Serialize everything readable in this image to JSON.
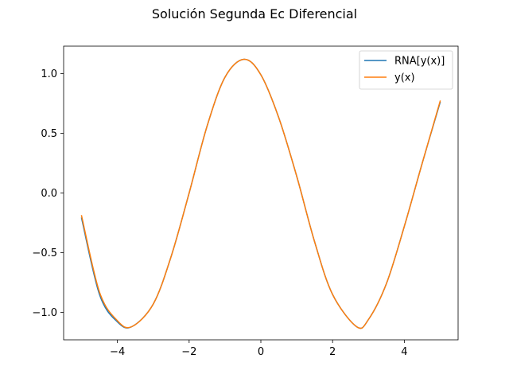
{
  "chart_data": {
    "type": "line",
    "title": "Solución Segunda Ec Diferencial",
    "xlabel": "",
    "ylabel": "",
    "xlim": [
      -5.5,
      5.5
    ],
    "ylim": [
      -1.23,
      1.23
    ],
    "xticks": [
      -4,
      -2,
      0,
      2,
      4
    ],
    "xtick_labels": [
      "−4",
      "−2",
      "0",
      "2",
      "4"
    ],
    "yticks": [
      -1.0,
      -0.5,
      0.0,
      0.5,
      1.0
    ],
    "ytick_labels": [
      "−1.0",
      "−0.5",
      "0.0",
      "0.5",
      "1.0"
    ],
    "grid": false,
    "legend_position": "top-right",
    "series": [
      {
        "name": "RNA[y(x)]",
        "color": "#1f77b4",
        "x": [
          -5.0,
          -4.5,
          -4.0,
          -3.6,
          -3.0,
          -2.5,
          -2.0,
          -1.5,
          -1.0,
          -0.47,
          0.0,
          0.5,
          1.0,
          1.5,
          2.0,
          2.67,
          3.0,
          3.5,
          4.0,
          4.5,
          5.0
        ],
        "y": [
          -0.21,
          -0.85,
          -1.08,
          -1.12,
          -0.93,
          -0.53,
          0.0,
          0.56,
          0.97,
          1.12,
          0.99,
          0.63,
          0.14,
          -0.41,
          -0.85,
          -1.12,
          -1.06,
          -0.76,
          -0.28,
          0.25,
          0.76
        ]
      },
      {
        "name": "y(x)",
        "color": "#ff7f0e",
        "x": [
          -5.0,
          -4.5,
          -4.0,
          -3.6,
          -3.0,
          -2.5,
          -2.0,
          -1.5,
          -1.0,
          -0.47,
          0.0,
          0.5,
          1.0,
          1.5,
          2.0,
          2.67,
          3.0,
          3.5,
          4.0,
          4.5,
          5.0
        ],
        "y": [
          -0.19,
          -0.83,
          -1.07,
          -1.12,
          -0.93,
          -0.53,
          0.0,
          0.56,
          0.97,
          1.12,
          0.99,
          0.63,
          0.14,
          -0.41,
          -0.85,
          -1.12,
          -1.06,
          -0.76,
          -0.28,
          0.25,
          0.77
        ]
      }
    ]
  }
}
